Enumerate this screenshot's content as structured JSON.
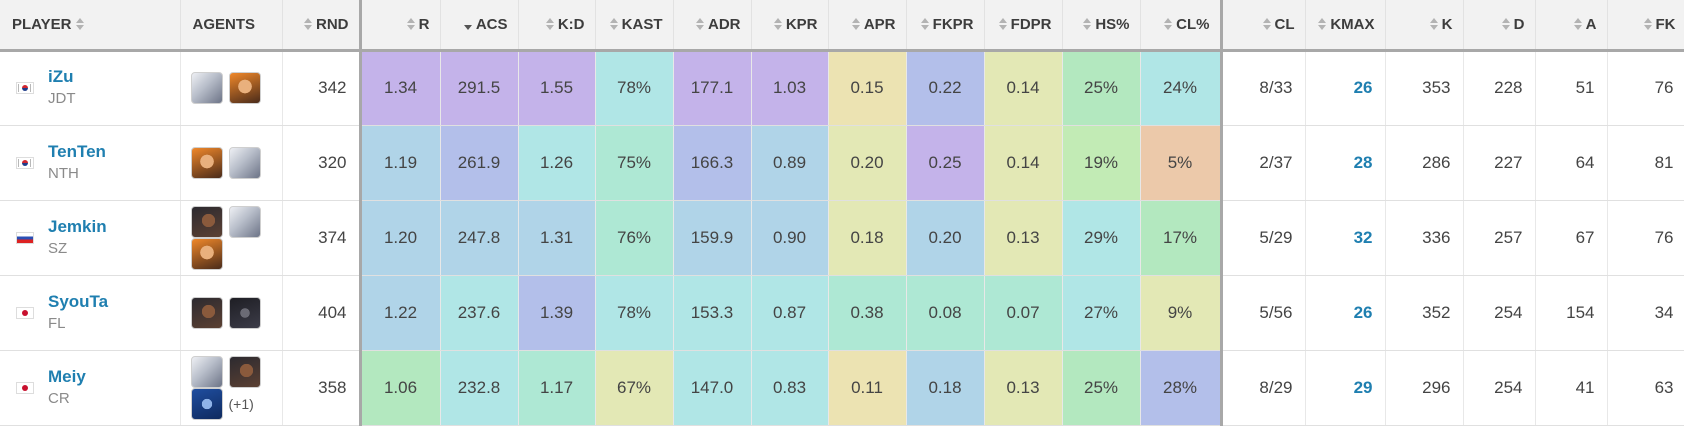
{
  "headers": [
    {
      "label": "PLAYER",
      "sort": "both"
    },
    {
      "label": "AGENTS",
      "sort": "none"
    },
    {
      "label": "RND",
      "sort": "both"
    },
    {
      "label": "R",
      "sort": "both"
    },
    {
      "label": "ACS",
      "sort": "desc"
    },
    {
      "label": "K:D",
      "sort": "both"
    },
    {
      "label": "KAST",
      "sort": "both"
    },
    {
      "label": "ADR",
      "sort": "both"
    },
    {
      "label": "KPR",
      "sort": "both"
    },
    {
      "label": "APR",
      "sort": "both"
    },
    {
      "label": "FKPR",
      "sort": "both"
    },
    {
      "label": "FDPR",
      "sort": "both"
    },
    {
      "label": "HS%",
      "sort": "both"
    },
    {
      "label": "CL%",
      "sort": "both"
    },
    {
      "label": "CL",
      "sort": "both"
    },
    {
      "label": "KMAX",
      "sort": "both"
    },
    {
      "label": "K",
      "sort": "both"
    },
    {
      "label": "D",
      "sort": "both"
    },
    {
      "label": "A",
      "sort": "both"
    },
    {
      "label": "FK",
      "sort": "both"
    }
  ],
  "stat_colors": {
    "purple": "#c4b3ea",
    "lavender": "#b3bfea",
    "lightblue": "#b0d4e8",
    "cyan": "#b0e6e6",
    "teal": "#aee8d4",
    "green": "#b3e8bf",
    "mint": "#c2ebb5",
    "yellow": "#e3e8b5",
    "khaki": "#ece3b2",
    "peach": "#ecc9aa"
  },
  "players": [
    {
      "name": "iZu",
      "team": "JDT",
      "flag": "kr",
      "agents": [
        {
          "icon": "agent-gray-icon",
          "tone": "gray"
        },
        {
          "icon": "agent-orange-icon",
          "tone": "orange"
        }
      ],
      "agents_more": "",
      "rnd": "342",
      "stats": [
        {
          "v": "1.34",
          "c": "purple"
        },
        {
          "v": "291.5",
          "c": "purple"
        },
        {
          "v": "1.55",
          "c": "purple"
        },
        {
          "v": "78%",
          "c": "cyan"
        },
        {
          "v": "177.1",
          "c": "purple"
        },
        {
          "v": "1.03",
          "c": "purple"
        },
        {
          "v": "0.15",
          "c": "khaki"
        },
        {
          "v": "0.22",
          "c": "lavender"
        },
        {
          "v": "0.14",
          "c": "yellow"
        },
        {
          "v": "25%",
          "c": "green"
        },
        {
          "v": "24%",
          "c": "cyan"
        }
      ],
      "cl": "8/33",
      "kmax": "26",
      "k": "353",
      "d": "228",
      "a": "51",
      "fk": "76"
    },
    {
      "name": "TenTen",
      "team": "NTH",
      "flag": "kr",
      "agents": [
        {
          "icon": "agent-orange-icon",
          "tone": "orange"
        },
        {
          "icon": "agent-gray-icon",
          "tone": "gray"
        }
      ],
      "agents_more": "",
      "rnd": "320",
      "stats": [
        {
          "v": "1.19",
          "c": "lightblue"
        },
        {
          "v": "261.9",
          "c": "lavender"
        },
        {
          "v": "1.26",
          "c": "cyan"
        },
        {
          "v": "75%",
          "c": "teal"
        },
        {
          "v": "166.3",
          "c": "lavender"
        },
        {
          "v": "0.89",
          "c": "lightblue"
        },
        {
          "v": "0.20",
          "c": "yellow"
        },
        {
          "v": "0.25",
          "c": "purple"
        },
        {
          "v": "0.14",
          "c": "yellow"
        },
        {
          "v": "19%",
          "c": "mint"
        },
        {
          "v": "5%",
          "c": "peach"
        }
      ],
      "cl": "2/37",
      "kmax": "28",
      "k": "286",
      "d": "227",
      "a": "64",
      "fk": "81"
    },
    {
      "name": "Jemkin",
      "team": "SZ",
      "flag": "ru",
      "agents": [
        {
          "icon": "agent-dark-icon",
          "tone": "dark"
        },
        {
          "icon": "agent-gray-icon",
          "tone": "gray"
        },
        {
          "icon": "agent-orange-icon",
          "tone": "orange"
        }
      ],
      "agents_more": "",
      "rnd": "374",
      "stats": [
        {
          "v": "1.20",
          "c": "lightblue"
        },
        {
          "v": "247.8",
          "c": "lightblue"
        },
        {
          "v": "1.31",
          "c": "lightblue"
        },
        {
          "v": "76%",
          "c": "teal"
        },
        {
          "v": "159.9",
          "c": "lightblue"
        },
        {
          "v": "0.90",
          "c": "lightblue"
        },
        {
          "v": "0.18",
          "c": "yellow"
        },
        {
          "v": "0.20",
          "c": "lightblue"
        },
        {
          "v": "0.13",
          "c": "yellow"
        },
        {
          "v": "29%",
          "c": "cyan"
        },
        {
          "v": "17%",
          "c": "green"
        }
      ],
      "cl": "5/29",
      "kmax": "32",
      "k": "336",
      "d": "257",
      "a": "67",
      "fk": "76"
    },
    {
      "name": "SyouTa",
      "team": "FL",
      "flag": "jp",
      "agents": [
        {
          "icon": "agent-dark-icon",
          "tone": "dark"
        },
        {
          "icon": "agent-black-icon",
          "tone": "black"
        }
      ],
      "agents_more": "",
      "rnd": "404",
      "stats": [
        {
          "v": "1.22",
          "c": "lightblue"
        },
        {
          "v": "237.6",
          "c": "cyan"
        },
        {
          "v": "1.39",
          "c": "lavender"
        },
        {
          "v": "78%",
          "c": "cyan"
        },
        {
          "v": "153.3",
          "c": "cyan"
        },
        {
          "v": "0.87",
          "c": "cyan"
        },
        {
          "v": "0.38",
          "c": "teal"
        },
        {
          "v": "0.08",
          "c": "teal"
        },
        {
          "v": "0.07",
          "c": "teal"
        },
        {
          "v": "27%",
          "c": "cyan"
        },
        {
          "v": "9%",
          "c": "yellow"
        }
      ],
      "cl": "5/56",
      "kmax": "26",
      "k": "352",
      "d": "254",
      "a": "154",
      "fk": "34"
    },
    {
      "name": "Meiy",
      "team": "CR",
      "flag": "jp",
      "agents": [
        {
          "icon": "agent-gray-icon",
          "tone": "gray"
        },
        {
          "icon": "agent-dark-icon",
          "tone": "dark"
        },
        {
          "icon": "agent-blue-icon",
          "tone": "blue"
        }
      ],
      "agents_more": "(+1)",
      "rnd": "358",
      "stats": [
        {
          "v": "1.06",
          "c": "green"
        },
        {
          "v": "232.8",
          "c": "cyan"
        },
        {
          "v": "1.17",
          "c": "teal"
        },
        {
          "v": "67%",
          "c": "yellow"
        },
        {
          "v": "147.0",
          "c": "cyan"
        },
        {
          "v": "0.83",
          "c": "cyan"
        },
        {
          "v": "0.11",
          "c": "khaki"
        },
        {
          "v": "0.18",
          "c": "lightblue"
        },
        {
          "v": "0.13",
          "c": "yellow"
        },
        {
          "v": "25%",
          "c": "green"
        },
        {
          "v": "28%",
          "c": "lavender"
        }
      ],
      "cl": "8/29",
      "kmax": "29",
      "k": "296",
      "d": "254",
      "a": "41",
      "fk": "63"
    }
  ]
}
